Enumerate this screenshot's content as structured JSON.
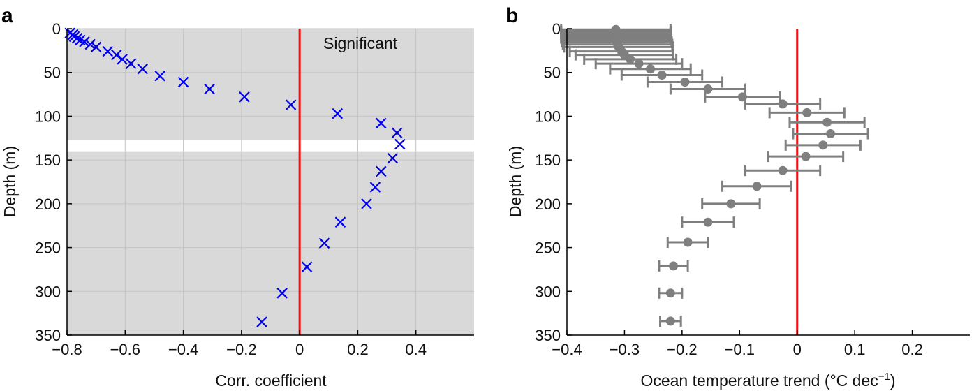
{
  "panel_labels": [
    "a",
    "b"
  ],
  "chart_data": [
    {
      "type": "scatter",
      "panel": "a",
      "xlabel": "Corr. coefficient",
      "ylabel": "Depth (m)",
      "xlim": [
        -0.8,
        0.6
      ],
      "ylim": [
        0,
        350
      ],
      "y_inverted": true,
      "xticks": [
        -0.8,
        -0.6,
        -0.4,
        -0.2,
        0,
        0.2,
        0.4
      ],
      "xtick_labels": [
        "−0.8",
        "−0.6",
        "−0.4",
        "−0.2",
        "0",
        "0.2",
        "0.4"
      ],
      "yticks": [
        0,
        50,
        100,
        150,
        200,
        250,
        300,
        350
      ],
      "ytick_labels": [
        "0",
        "50",
        "100",
        "150",
        "200",
        "250",
        "300",
        "350"
      ],
      "grid": true,
      "annotation": "Significant",
      "significant_ranges": [
        [
          0,
          127
        ],
        [
          140,
          350
        ]
      ],
      "reference_line_x": 0,
      "marker": "x",
      "marker_color": "#0000ee",
      "line_color": "#ee1111",
      "shade_color": "#d9d9d9",
      "points": [
        {
          "x": -0.79,
          "y": 5
        },
        {
          "x": -0.78,
          "y": 7
        },
        {
          "x": -0.775,
          "y": 9
        },
        {
          "x": -0.765,
          "y": 11
        },
        {
          "x": -0.755,
          "y": 13
        },
        {
          "x": -0.74,
          "y": 15
        },
        {
          "x": -0.72,
          "y": 18
        },
        {
          "x": -0.7,
          "y": 21
        },
        {
          "x": -0.66,
          "y": 26
        },
        {
          "x": -0.63,
          "y": 30
        },
        {
          "x": -0.61,
          "y": 35
        },
        {
          "x": -0.58,
          "y": 40
        },
        {
          "x": -0.54,
          "y": 46
        },
        {
          "x": -0.48,
          "y": 54
        },
        {
          "x": -0.4,
          "y": 61
        },
        {
          "x": -0.31,
          "y": 69
        },
        {
          "x": -0.19,
          "y": 78
        },
        {
          "x": -0.03,
          "y": 87
        },
        {
          "x": 0.13,
          "y": 97
        },
        {
          "x": 0.28,
          "y": 108
        },
        {
          "x": 0.335,
          "y": 119
        },
        {
          "x": 0.345,
          "y": 132
        },
        {
          "x": 0.32,
          "y": 148
        },
        {
          "x": 0.28,
          "y": 163
        },
        {
          "x": 0.26,
          "y": 181
        },
        {
          "x": 0.23,
          "y": 200
        },
        {
          "x": 0.14,
          "y": 221
        },
        {
          "x": 0.085,
          "y": 245
        },
        {
          "x": 0.025,
          "y": 272
        },
        {
          "x": -0.06,
          "y": 302
        },
        {
          "x": -0.13,
          "y": 335
        }
      ]
    },
    {
      "type": "scatter",
      "panel": "b",
      "xlabel": "Ocean temperature trend (°C dec",
      "xlabel_sup": "−1",
      "xlabel_end": ")",
      "ylabel": "Depth (m)",
      "xlim": [
        -0.4,
        0.3
      ],
      "ylim": [
        0,
        350
      ],
      "y_inverted": true,
      "xticks": [
        -0.4,
        -0.3,
        -0.2,
        -0.1,
        0,
        0.1,
        0.2
      ],
      "xtick_labels": [
        "−0.4",
        "−0.3",
        "−0.2",
        "−0.1",
        "0",
        "0.1",
        "0.2"
      ],
      "yticks": [
        0,
        50,
        100,
        150,
        200,
        250,
        300,
        350
      ],
      "ytick_labels": [
        "0",
        "50",
        "100",
        "150",
        "200",
        "250",
        "300",
        "350"
      ],
      "grid": false,
      "reference_line_x": 0,
      "marker": "filled-circle",
      "marker_color": "#7f7f7f",
      "line_color": "#ee1111",
      "points": [
        {
          "x": -0.315,
          "y": 1,
          "xerr": 0.095
        },
        {
          "x": -0.315,
          "y": 3,
          "xerr": 0.095
        },
        {
          "x": -0.315,
          "y": 5,
          "xerr": 0.095
        },
        {
          "x": -0.315,
          "y": 7,
          "xerr": 0.095
        },
        {
          "x": -0.315,
          "y": 9,
          "xerr": 0.095
        },
        {
          "x": -0.315,
          "y": 11,
          "xerr": 0.095
        },
        {
          "x": -0.314,
          "y": 13,
          "xerr": 0.095
        },
        {
          "x": -0.313,
          "y": 15,
          "xerr": 0.095
        },
        {
          "x": -0.312,
          "y": 18,
          "xerr": 0.095
        },
        {
          "x": -0.31,
          "y": 21,
          "xerr": 0.095
        },
        {
          "x": -0.305,
          "y": 26,
          "xerr": 0.09
        },
        {
          "x": -0.3,
          "y": 30,
          "xerr": 0.085
        },
        {
          "x": -0.29,
          "y": 35,
          "xerr": 0.08
        },
        {
          "x": -0.275,
          "y": 40,
          "xerr": 0.075
        },
        {
          "x": -0.255,
          "y": 46,
          "xerr": 0.07
        },
        {
          "x": -0.235,
          "y": 53,
          "xerr": 0.07
        },
        {
          "x": -0.195,
          "y": 61,
          "xerr": 0.065
        },
        {
          "x": -0.155,
          "y": 69,
          "xerr": 0.065
        },
        {
          "x": -0.095,
          "y": 78,
          "xerr": 0.065
        },
        {
          "x": -0.025,
          "y": 86,
          "xerr": 0.065
        },
        {
          "x": 0.017,
          "y": 96,
          "xerr": 0.065
        },
        {
          "x": 0.052,
          "y": 107,
          "xerr": 0.065
        },
        {
          "x": 0.058,
          "y": 120,
          "xerr": 0.065
        },
        {
          "x": 0.045,
          "y": 133,
          "xerr": 0.065
        },
        {
          "x": 0.015,
          "y": 146,
          "xerr": 0.065
        },
        {
          "x": -0.025,
          "y": 162,
          "xerr": 0.065
        },
        {
          "x": -0.07,
          "y": 180,
          "xerr": 0.06
        },
        {
          "x": -0.115,
          "y": 200,
          "xerr": 0.05
        },
        {
          "x": -0.155,
          "y": 221,
          "xerr": 0.045
        },
        {
          "x": -0.19,
          "y": 244,
          "xerr": 0.035
        },
        {
          "x": -0.215,
          "y": 271,
          "xerr": 0.025
        },
        {
          "x": -0.22,
          "y": 302,
          "xerr": 0.02
        },
        {
          "x": -0.22,
          "y": 334,
          "xerr": 0.018
        }
      ]
    }
  ]
}
